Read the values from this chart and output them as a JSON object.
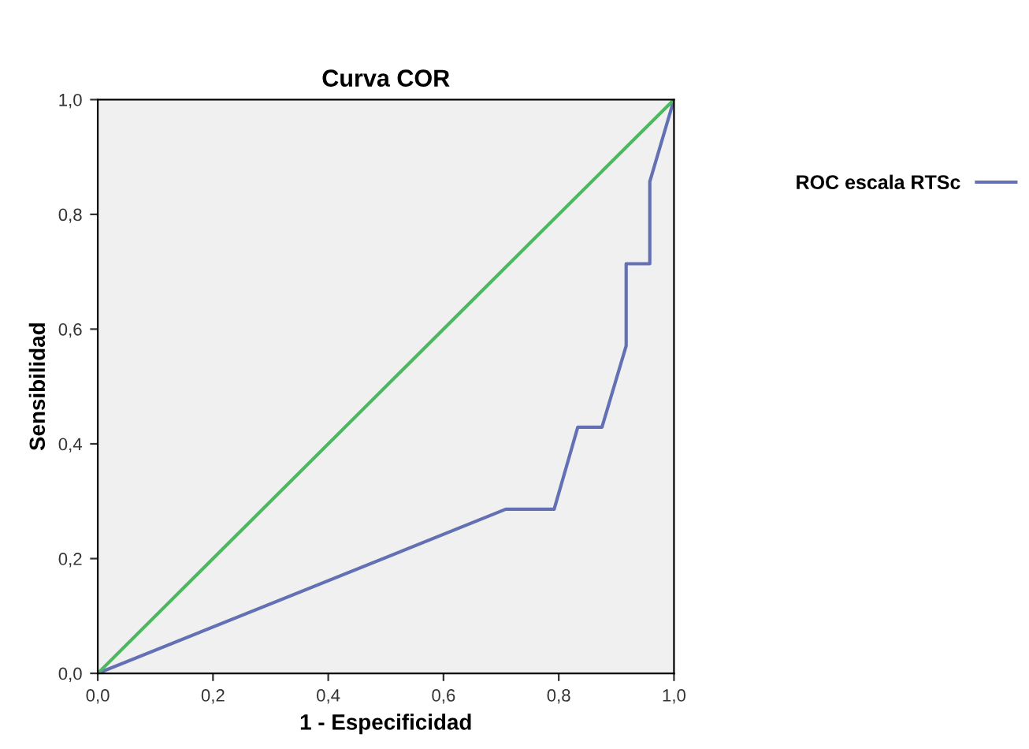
{
  "chart_data": {
    "type": "line",
    "title": "Curva COR",
    "xlabel": "1 - Especificidad",
    "ylabel": "Sensibilidad",
    "xlim": [
      0,
      1
    ],
    "ylim": [
      0,
      1
    ],
    "xticks": [
      {
        "value": 0,
        "label": "0,0"
      },
      {
        "value": 0.2,
        "label": "0,2"
      },
      {
        "value": 0.4,
        "label": "0,4"
      },
      {
        "value": 0.6,
        "label": "0,6"
      },
      {
        "value": 0.8,
        "label": "0,8"
      },
      {
        "value": 1,
        "label": "1,0"
      }
    ],
    "yticks": [
      {
        "value": 0,
        "label": "0,0"
      },
      {
        "value": 0.2,
        "label": "0,2"
      },
      {
        "value": 0.4,
        "label": "0,4"
      },
      {
        "value": 0.6,
        "label": "0,6"
      },
      {
        "value": 0.8,
        "label": "0,8"
      },
      {
        "value": 1,
        "label": "1,0"
      }
    ],
    "series": [
      {
        "name": "ROC escala RTSc",
        "color": "#6470b4",
        "x": [
          0,
          0.708,
          0.792,
          0.833,
          0.875,
          0.917,
          0.917,
          0.958,
          0.958,
          1
        ],
        "values": [
          0,
          0.286,
          0.286,
          0.429,
          0.429,
          0.571,
          0.714,
          0.714,
          0.857,
          1
        ]
      },
      {
        "color": "#4cb860",
        "x": [
          0,
          1
        ],
        "values": [
          0,
          1
        ]
      }
    ],
    "grid": false,
    "legend": "right",
    "marker": "none",
    "line_style": "solid"
  }
}
